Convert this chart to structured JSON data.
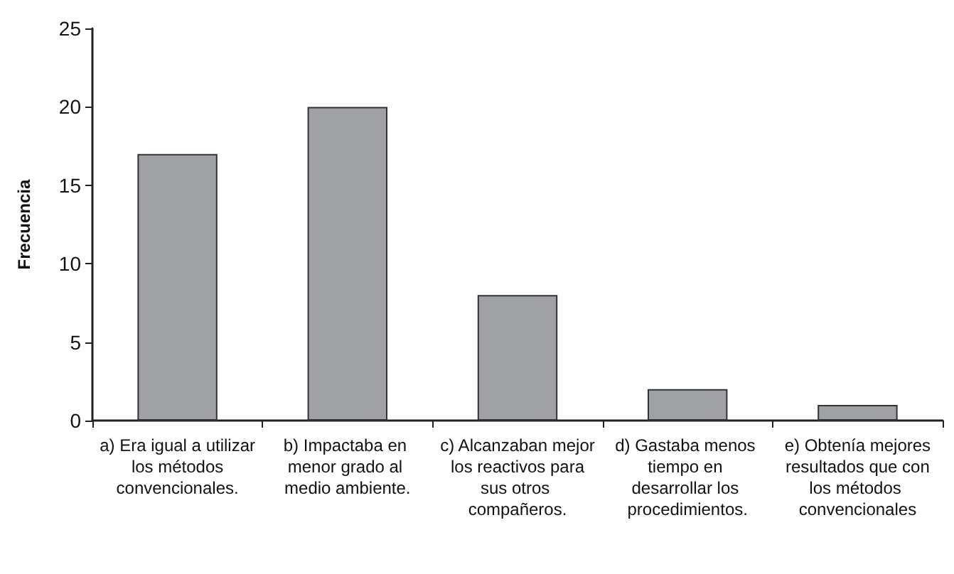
{
  "chart_data": {
    "type": "bar",
    "ylabel": "Frecuencia",
    "categories": [
      "a) Era igual a utilizar los métodos convencionales.",
      "b) Impactaba en menor grado al medio ambiente.",
      "c) Alcanzaban mejor los reactivos para sus otros compañeros.",
      "d) Gastaba menos tiempo en desarrollar los procedimientos.",
      "e) Obtenía mejores resultados que con los métodos convencionales"
    ],
    "values": [
      17,
      20,
      8,
      2,
      1
    ],
    "color": "#a0a1a5",
    "ylim": [
      0,
      25
    ],
    "yticks": [
      0,
      5,
      10,
      15,
      20,
      25
    ],
    "grid": false
  }
}
